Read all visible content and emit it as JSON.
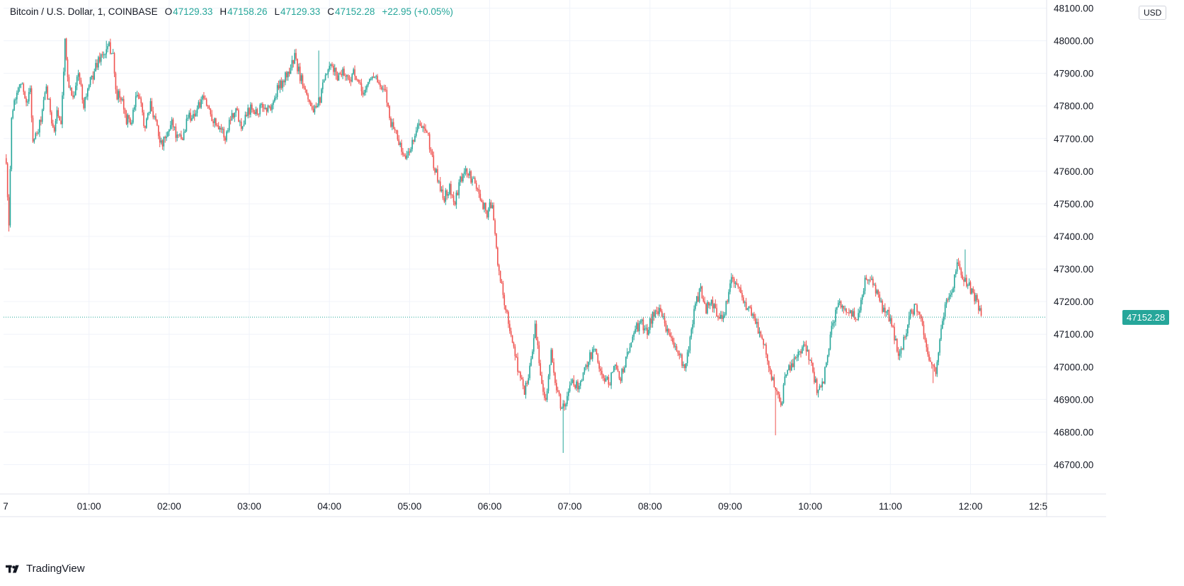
{
  "legend": {
    "symbol": "Bitcoin / U.S. Dollar, 1, COINBASE",
    "open_label": "O",
    "open": "47129.33",
    "high_label": "H",
    "high": "47158.26",
    "low_label": "L",
    "low": "47129.33",
    "close_label": "C",
    "close": "47152.28",
    "change": "+22.95 (+0.05%)"
  },
  "currency_label": "USD",
  "brand_name": "TradingView",
  "last_price_label": "47152.28",
  "colors": {
    "up": "#26a69a",
    "down": "#ef5350",
    "grid": "#f0f3fa",
    "axis_text": "#131722"
  },
  "chart_data": {
    "type": "candlestick",
    "title": "Bitcoin / U.S. Dollar, 1, COINBASE",
    "xlabel": "",
    "ylabel": "",
    "x_ticks": [
      "7",
      "01:00",
      "02:00",
      "03:00",
      "04:00",
      "05:00",
      "06:00",
      "07:00",
      "08:00",
      "09:00",
      "10:00",
      "11:00",
      "12:00",
      "12:5"
    ],
    "y_ticks": [
      "48100.00",
      "48000.00",
      "47900.00",
      "47800.00",
      "47700.00",
      "47600.00",
      "47500.00",
      "47400.00",
      "47300.00",
      "47200.00",
      "47100.00",
      "47000.00",
      "46900.00",
      "46800.00",
      "46700.00"
    ],
    "ylim": [
      46610,
      48125
    ],
    "x_range_minutes": [
      -64,
      717
    ],
    "last_price": 47152.28,
    "grid": true,
    "close_path": [
      [
        -62,
        47640
      ],
      [
        -60,
        47420
      ],
      [
        -58,
        47780
      ],
      [
        -52,
        47880
      ],
      [
        -46,
        47810
      ],
      [
        -44,
        47860
      ],
      [
        -42,
        47690
      ],
      [
        -38,
        47720
      ],
      [
        -32,
        47850
      ],
      [
        -26,
        47720
      ],
      [
        -24,
        47790
      ],
      [
        -21,
        47730
      ],
      [
        -18,
        47990
      ],
      [
        -15,
        47860
      ],
      [
        -12,
        47830
      ],
      [
        -8,
        47900
      ],
      [
        -4,
        47810
      ],
      [
        0,
        47860
      ],
      [
        4,
        47910
      ],
      [
        8,
        47950
      ],
      [
        12,
        47960
      ],
      [
        15,
        47980
      ],
      [
        18,
        47960
      ],
      [
        20,
        47840
      ],
      [
        24,
        47820
      ],
      [
        28,
        47760
      ],
      [
        32,
        47750
      ],
      [
        36,
        47840
      ],
      [
        40,
        47780
      ],
      [
        42,
        47730
      ],
      [
        46,
        47800
      ],
      [
        50,
        47760
      ],
      [
        54,
        47680
      ],
      [
        58,
        47700
      ],
      [
        62,
        47760
      ],
      [
        66,
        47700
      ],
      [
        70,
        47700
      ],
      [
        74,
        47770
      ],
      [
        78,
        47770
      ],
      [
        82,
        47800
      ],
      [
        86,
        47820
      ],
      [
        90,
        47790
      ],
      [
        94,
        47750
      ],
      [
        98,
        47740
      ],
      [
        102,
        47700
      ],
      [
        106,
        47770
      ],
      [
        110,
        47790
      ],
      [
        114,
        47740
      ],
      [
        118,
        47780
      ],
      [
        122,
        47800
      ],
      [
        126,
        47780
      ],
      [
        130,
        47800
      ],
      [
        134,
        47790
      ],
      [
        138,
        47810
      ],
      [
        142,
        47860
      ],
      [
        146,
        47880
      ],
      [
        150,
        47910
      ],
      [
        154,
        47950
      ],
      [
        158,
        47890
      ],
      [
        162,
        47860
      ],
      [
        166,
        47800
      ],
      [
        170,
        47780
      ],
      [
        174,
        47840
      ],
      [
        178,
        47900
      ],
      [
        182,
        47920
      ],
      [
        186,
        47890
      ],
      [
        190,
        47910
      ],
      [
        194,
        47880
      ],
      [
        198,
        47900
      ],
      [
        202,
        47860
      ],
      [
        206,
        47840
      ],
      [
        210,
        47880
      ],
      [
        214,
        47900
      ],
      [
        218,
        47850
      ],
      [
        222,
        47840
      ],
      [
        226,
        47750
      ],
      [
        230,
        47720
      ],
      [
        234,
        47660
      ],
      [
        238,
        47640
      ],
      [
        242,
        47690
      ],
      [
        246,
        47740
      ],
      [
        250,
        47730
      ],
      [
        254,
        47700
      ],
      [
        258,
        47620
      ],
      [
        262,
        47560
      ],
      [
        266,
        47520
      ],
      [
        270,
        47550
      ],
      [
        274,
        47500
      ],
      [
        278,
        47570
      ],
      [
        282,
        47600
      ],
      [
        286,
        47580
      ],
      [
        290,
        47550
      ],
      [
        294,
        47510
      ],
      [
        298,
        47470
      ],
      [
        302,
        47510
      ],
      [
        306,
        47300
      ],
      [
        310,
        47230
      ],
      [
        314,
        47130
      ],
      [
        318,
        47060
      ],
      [
        322,
        46980
      ],
      [
        326,
        46920
      ],
      [
        330,
        47000
      ],
      [
        334,
        47120
      ],
      [
        338,
        46980
      ],
      [
        342,
        46900
      ],
      [
        346,
        47040
      ],
      [
        350,
        46930
      ],
      [
        354,
        46870
      ],
      [
        358,
        46900
      ],
      [
        362,
        46960
      ],
      [
        366,
        46940
      ],
      [
        370,
        46970
      ],
      [
        374,
        47030
      ],
      [
        378,
        47050
      ],
      [
        382,
        47010
      ],
      [
        386,
        46950
      ],
      [
        390,
        46960
      ],
      [
        394,
        47000
      ],
      [
        398,
        46970
      ],
      [
        402,
        47020
      ],
      [
        406,
        47080
      ],
      [
        410,
        47120
      ],
      [
        414,
        47130
      ],
      [
        418,
        47110
      ],
      [
        422,
        47160
      ],
      [
        426,
        47170
      ],
      [
        430,
        47150
      ],
      [
        434,
        47100
      ],
      [
        438,
        47060
      ],
      [
        442,
        47040
      ],
      [
        446,
        46980
      ],
      [
        450,
        47080
      ],
      [
        454,
        47200
      ],
      [
        458,
        47230
      ],
      [
        462,
        47180
      ],
      [
        466,
        47190
      ],
      [
        470,
        47170
      ],
      [
        474,
        47150
      ],
      [
        478,
        47200
      ],
      [
        482,
        47280
      ],
      [
        486,
        47240
      ],
      [
        490,
        47200
      ],
      [
        494,
        47180
      ],
      [
        498,
        47160
      ],
      [
        502,
        47100
      ],
      [
        506,
        47070
      ],
      [
        510,
        46990
      ],
      [
        514,
        46920
      ],
      [
        518,
        46880
      ],
      [
        522,
        46980
      ],
      [
        526,
        47000
      ],
      [
        530,
        47030
      ],
      [
        534,
        47060
      ],
      [
        538,
        47050
      ],
      [
        542,
        46980
      ],
      [
        546,
        46920
      ],
      [
        550,
        46960
      ],
      [
        554,
        47070
      ],
      [
        558,
        47150
      ],
      [
        562,
        47200
      ],
      [
        566,
        47180
      ],
      [
        570,
        47170
      ],
      [
        574,
        47150
      ],
      [
        578,
        47190
      ],
      [
        582,
        47280
      ],
      [
        586,
        47260
      ],
      [
        590,
        47220
      ],
      [
        594,
        47180
      ],
      [
        598,
        47160
      ],
      [
        602,
        47110
      ],
      [
        606,
        47040
      ],
      [
        610,
        47080
      ],
      [
        614,
        47150
      ],
      [
        618,
        47180
      ],
      [
        622,
        47170
      ],
      [
        626,
        47090
      ],
      [
        630,
        47000
      ],
      [
        634,
        46980
      ],
      [
        638,
        47120
      ],
      [
        642,
        47200
      ],
      [
        646,
        47230
      ],
      [
        650,
        47330
      ],
      [
        654,
        47280
      ],
      [
        658,
        47250
      ],
      [
        662,
        47230
      ],
      [
        666,
        47180
      ],
      [
        668,
        47150
      ]
    ],
    "high": 48000.0,
    "low": 46736.0,
    "wicks": [
      {
        "minute": -18,
        "high": 48000.0
      },
      {
        "minute": 13,
        "high": 48000.0
      },
      {
        "minute": 172,
        "high": 47970.0
      },
      {
        "minute": -60,
        "low": 47415.0
      },
      {
        "minute": 355,
        "low": 46736.0
      },
      {
        "minute": 514,
        "low": 46790.0
      },
      {
        "minute": 632,
        "low": 46950.0
      },
      {
        "minute": 656,
        "high": 47360.0
      }
    ],
    "volatility_hint": "1-minute candles"
  }
}
